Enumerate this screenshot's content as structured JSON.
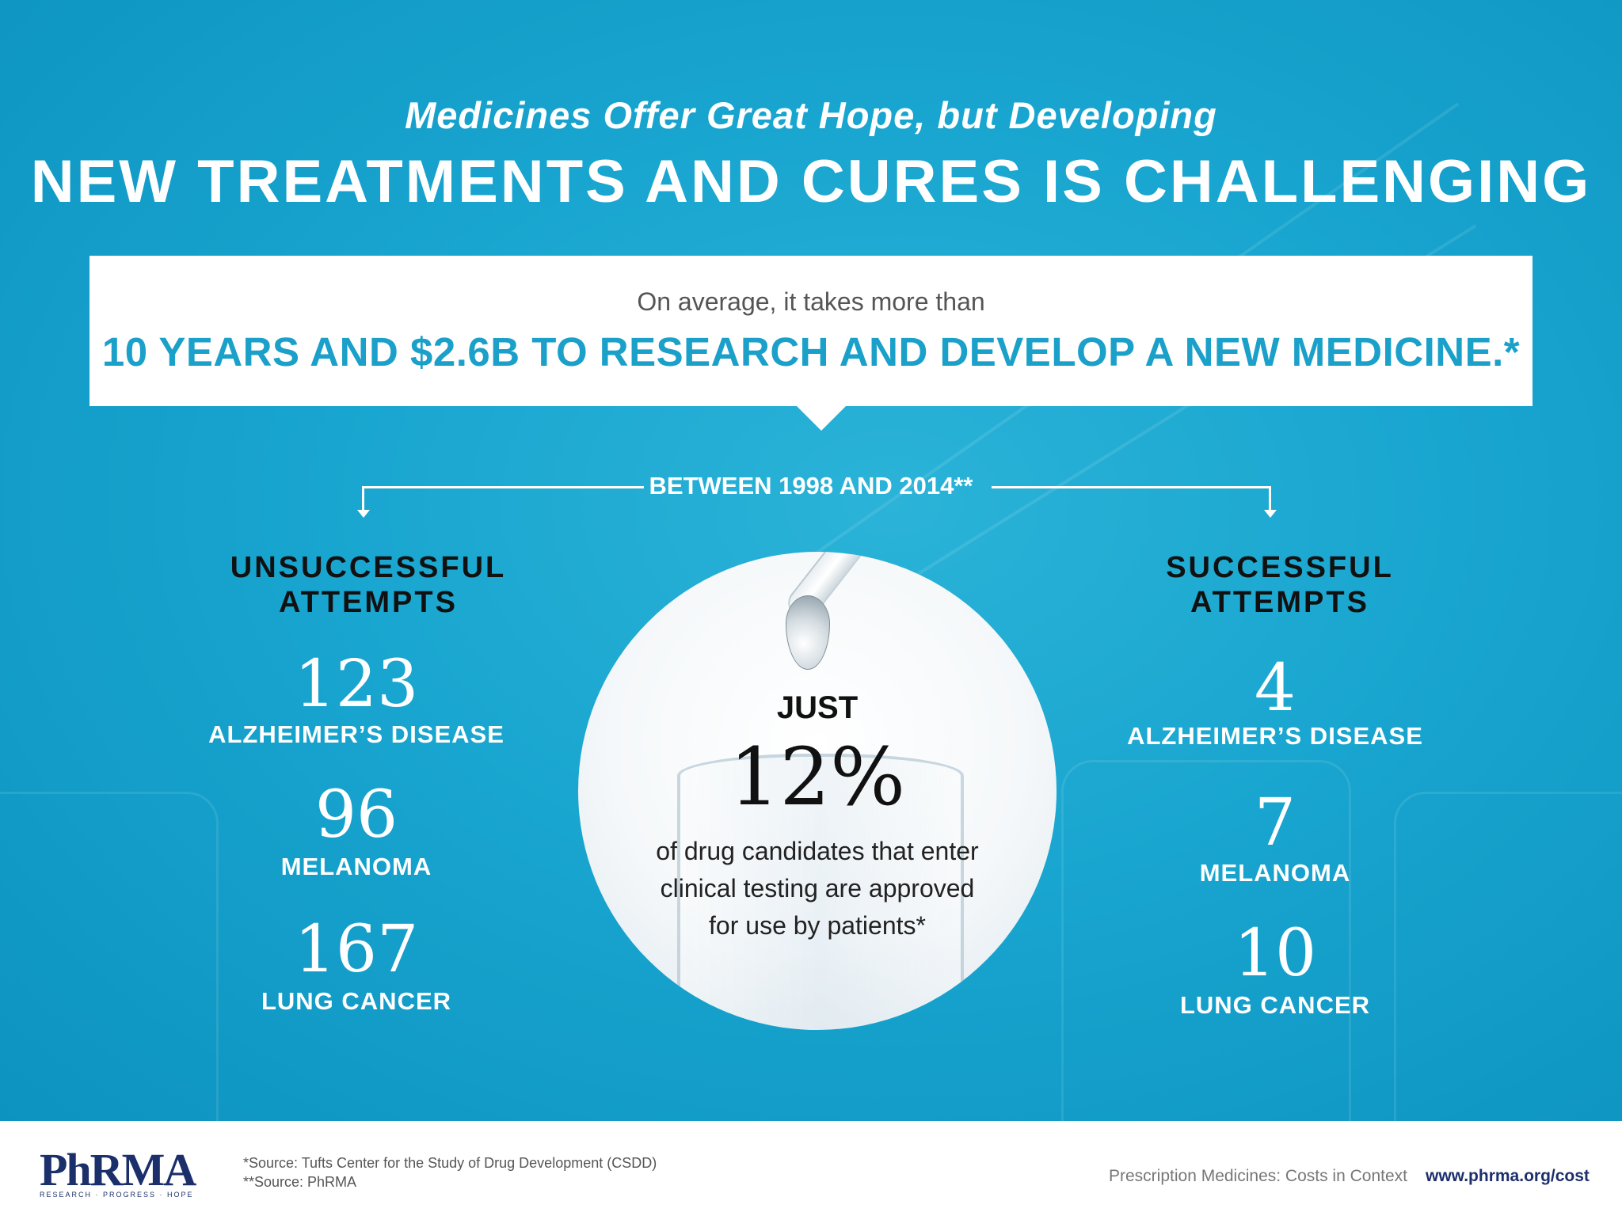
{
  "header": {
    "subtitle": "Medicines Offer Great Hope, but Developing",
    "title": "NEW TREATMENTS AND CURES IS CHALLENGING"
  },
  "callout": {
    "line1": "On average, it takes more than",
    "line2": "10 YEARS AND $2.6B TO RESEARCH AND DEVELOP A NEW MEDICINE.*"
  },
  "period": "BETWEEN 1998 AND 2014**",
  "unsuccessful": {
    "title_line1": "UNSUCCESSFUL",
    "title_line2": "ATTEMPTS",
    "stats": [
      {
        "value": "123",
        "label": "ALZHEIMER’S DISEASE"
      },
      {
        "value": "96",
        "label": "MELANOMA"
      },
      {
        "value": "167",
        "label": "LUNG CANCER"
      }
    ]
  },
  "successful": {
    "title_line1": "SUCCESSFUL",
    "title_line2": "ATTEMPTS",
    "stats": [
      {
        "value": "4",
        "label": "ALZHEIMER’S DISEASE"
      },
      {
        "value": "7",
        "label": "MELANOMA"
      },
      {
        "value": "10",
        "label": "LUNG CANCER"
      }
    ]
  },
  "center": {
    "prefix": "JUST",
    "percent": "12%",
    "description_line1": "of drug candidates that enter",
    "description_line2": "clinical testing are approved",
    "description_line3": "for use by patients*"
  },
  "footer": {
    "logo": "PhRMA",
    "logo_tagline": "RESEARCH · PROGRESS · HOPE",
    "source1": "*Source: Tufts Center for the Study of Drug Development (CSDD)",
    "source2": "**Source: PhRMA",
    "tagline": "Prescription Medicines: Costs in Context",
    "url": "www.phrma.org/cost"
  },
  "colors": {
    "background": "#18a5cf",
    "accent": "#1aa0c9",
    "logo": "#1b2f6b"
  }
}
